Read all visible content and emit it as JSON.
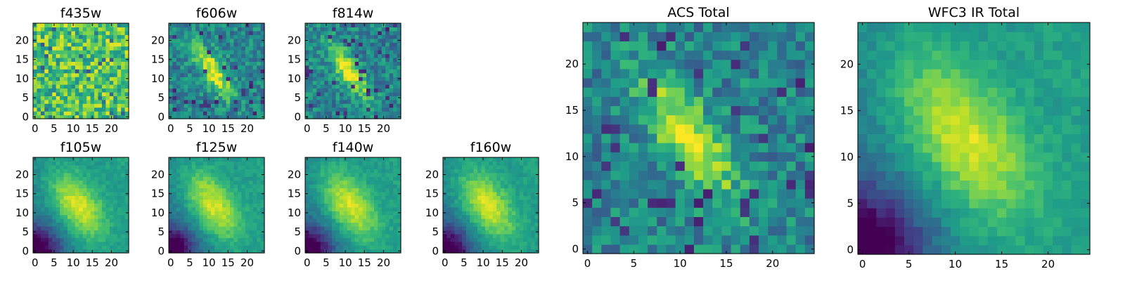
{
  "figure": {
    "colormap": "viridis",
    "colormap_stops": [
      "#440154",
      "#482878",
      "#3e4989",
      "#31688e",
      "#26828e",
      "#1f9e89",
      "#35b779",
      "#6ece58",
      "#b5de2b",
      "#fde725"
    ]
  },
  "chart_data": [
    {
      "type": "heatmap",
      "title": "f435w",
      "morphology": "noise",
      "xlabel": "",
      "ylabel": "",
      "xlim": [
        0,
        24
      ],
      "ylim": [
        0,
        24
      ],
      "x_ticks": [
        "0",
        "5",
        "10",
        "15",
        "20"
      ],
      "y_ticks": [
        "0",
        "5",
        "10",
        "15",
        "20"
      ],
      "grid_size": 25
    },
    {
      "type": "heatmap",
      "title": "f606w",
      "morphology": "elongated-diagonal-source",
      "xlabel": "",
      "ylabel": "",
      "xlim": [
        0,
        24
      ],
      "ylim": [
        0,
        24
      ],
      "x_ticks": [
        "0",
        "5",
        "10",
        "15",
        "20"
      ],
      "y_ticks": [
        "0",
        "5",
        "10",
        "15",
        "20"
      ],
      "grid_size": 25
    },
    {
      "type": "heatmap",
      "title": "f814w",
      "morphology": "elongated-diagonal-source",
      "xlabel": "",
      "ylabel": "",
      "xlim": [
        0,
        24
      ],
      "ylim": [
        0,
        24
      ],
      "x_ticks": [
        "0",
        "5",
        "10",
        "15",
        "20"
      ],
      "y_ticks": [
        "0",
        "5",
        "10",
        "15",
        "20"
      ],
      "grid_size": 25
    },
    {
      "type": "heatmap",
      "title": "f105w",
      "morphology": "smooth-diagonal-source",
      "xlabel": "",
      "ylabel": "",
      "xlim": [
        0,
        24
      ],
      "ylim": [
        0,
        24
      ],
      "x_ticks": [
        "0",
        "5",
        "10",
        "15",
        "20"
      ],
      "y_ticks": [
        "0",
        "5",
        "10",
        "15",
        "20"
      ],
      "grid_size": 25
    },
    {
      "type": "heatmap",
      "title": "f125w",
      "morphology": "smooth-diagonal-source",
      "xlabel": "",
      "ylabel": "",
      "xlim": [
        0,
        24
      ],
      "ylim": [
        0,
        24
      ],
      "x_ticks": [
        "0",
        "5",
        "10",
        "15",
        "20"
      ],
      "y_ticks": [
        "0",
        "5",
        "10",
        "15",
        "20"
      ],
      "grid_size": 25
    },
    {
      "type": "heatmap",
      "title": "f140w",
      "morphology": "smooth-diagonal-source",
      "xlabel": "",
      "ylabel": "",
      "xlim": [
        0,
        24
      ],
      "ylim": [
        0,
        24
      ],
      "x_ticks": [
        "0",
        "5",
        "10",
        "15",
        "20"
      ],
      "y_ticks": [
        "0",
        "5",
        "10",
        "15",
        "20"
      ],
      "grid_size": 25
    },
    {
      "type": "heatmap",
      "title": "f160w",
      "morphology": "smooth-diagonal-source",
      "xlabel": "",
      "ylabel": "",
      "xlim": [
        0,
        24
      ],
      "ylim": [
        0,
        24
      ],
      "x_ticks": [
        "0",
        "5",
        "10",
        "15",
        "20"
      ],
      "y_ticks": [
        "0",
        "5",
        "10",
        "15",
        "20"
      ],
      "grid_size": 25
    },
    {
      "type": "heatmap",
      "title": "ACS Total",
      "morphology": "elongated-diagonal-source",
      "xlabel": "",
      "ylabel": "",
      "xlim": [
        0,
        24
      ],
      "ylim": [
        0,
        24
      ],
      "x_ticks": [
        "0",
        "5",
        "10",
        "15",
        "20"
      ],
      "y_ticks": [
        "0",
        "5",
        "10",
        "15",
        "20"
      ],
      "grid_size": 25
    },
    {
      "type": "heatmap",
      "title": "WFC3 IR Total",
      "morphology": "smooth-diagonal-source",
      "xlabel": "",
      "ylabel": "",
      "xlim": [
        0,
        24
      ],
      "ylim": [
        0,
        24
      ],
      "x_ticks": [
        "0",
        "5",
        "10",
        "15",
        "20"
      ],
      "y_ticks": [
        "0",
        "5",
        "10",
        "15",
        "20"
      ],
      "grid_size": 25
    }
  ]
}
